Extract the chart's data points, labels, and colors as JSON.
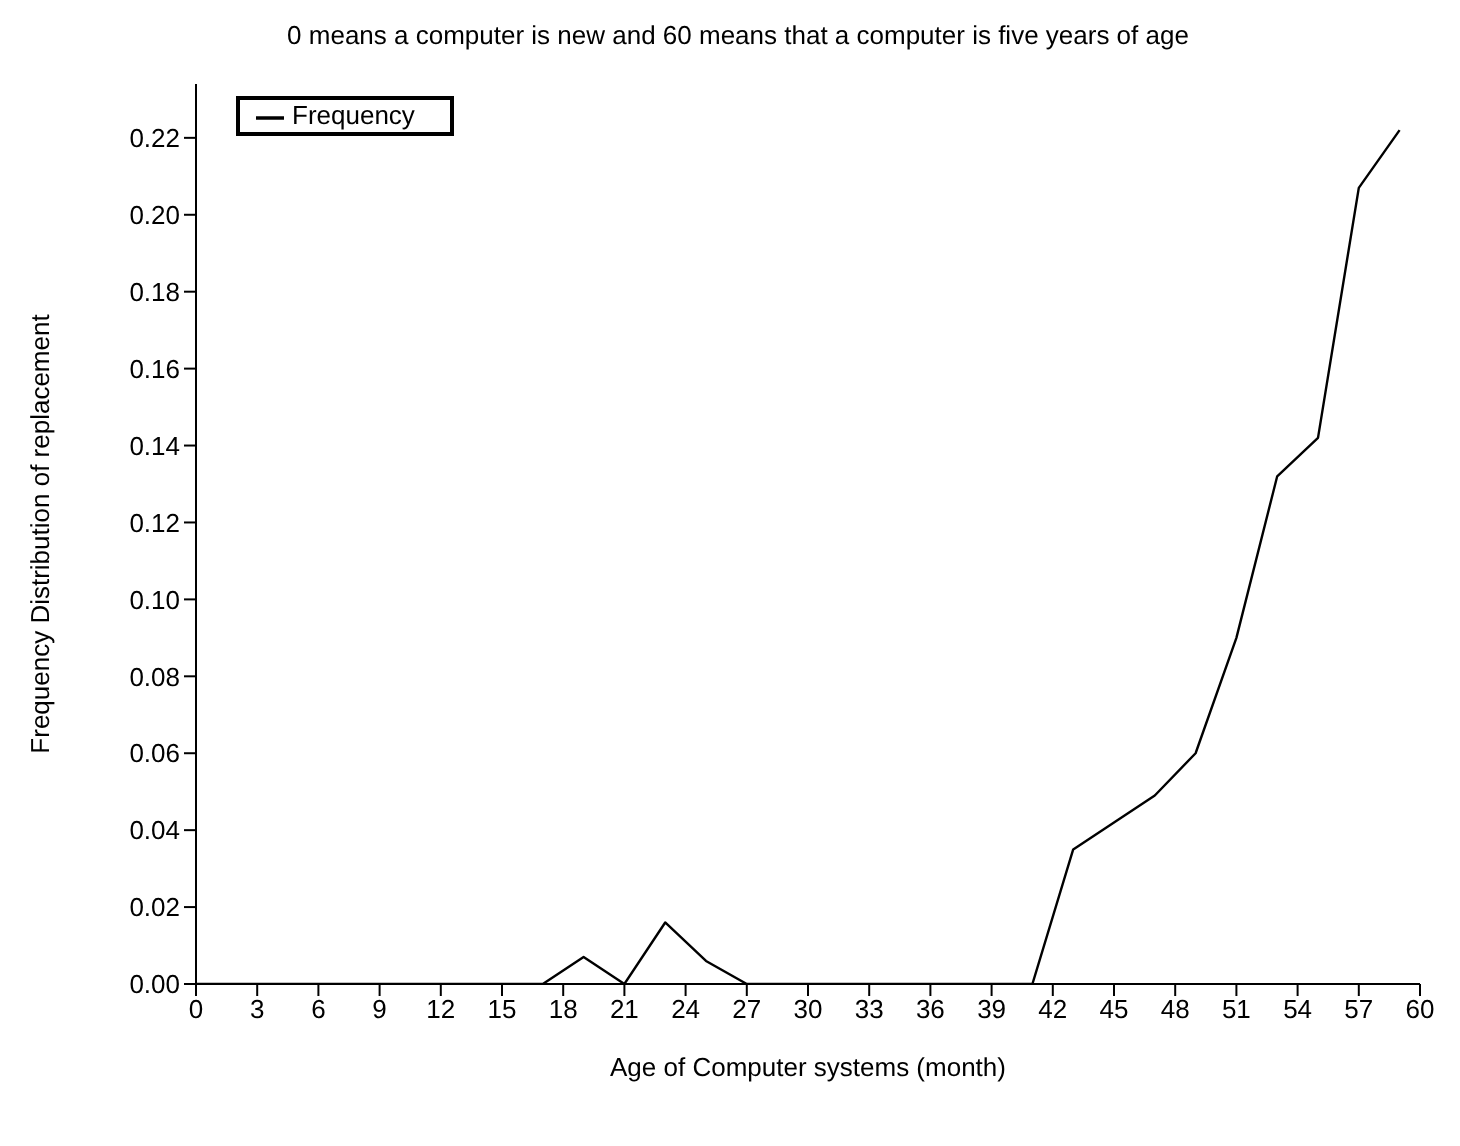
{
  "chart_data": {
    "type": "line",
    "title": "0 means a computer is new and 60 means that a computer is five years of age",
    "xlabel": "Age of Computer systems (month)",
    "ylabel": "Frequency Distribution of replacement",
    "legend": "top left",
    "grid": false,
    "marker": "none",
    "line_style": "solid",
    "xlim": [
      0,
      60
    ],
    "xticks": [
      0,
      3,
      6,
      9,
      12,
      15,
      18,
      21,
      24,
      27,
      30,
      33,
      36,
      39,
      42,
      45,
      48,
      51,
      54,
      57,
      60
    ],
    "ylim": [
      0,
      0.234
    ],
    "yticks": [
      {
        "value": 0,
        "label": "0.00"
      },
      0.02,
      0.04,
      0.06,
      0.08,
      {
        "value": 0.1,
        "label": "0.10"
      },
      0.12,
      0.14,
      0.16,
      0.18,
      {
        "value": 0.2,
        "label": "0.20"
      },
      0.22
    ],
    "series": [
      {
        "name": "Frequency",
        "color": "#000000",
        "x": [
          0,
          17,
          19,
          21,
          23,
          25,
          27,
          41,
          43,
          45,
          47,
          49,
          51,
          53,
          55,
          57,
          59
        ],
        "values": [
          0,
          0,
          0.007,
          0,
          0.016,
          0.006,
          0,
          0,
          0.035,
          0.042,
          0.049,
          0.06,
          0.09,
          0.132,
          0.142,
          0.207,
          0.222
        ]
      }
    ]
  }
}
